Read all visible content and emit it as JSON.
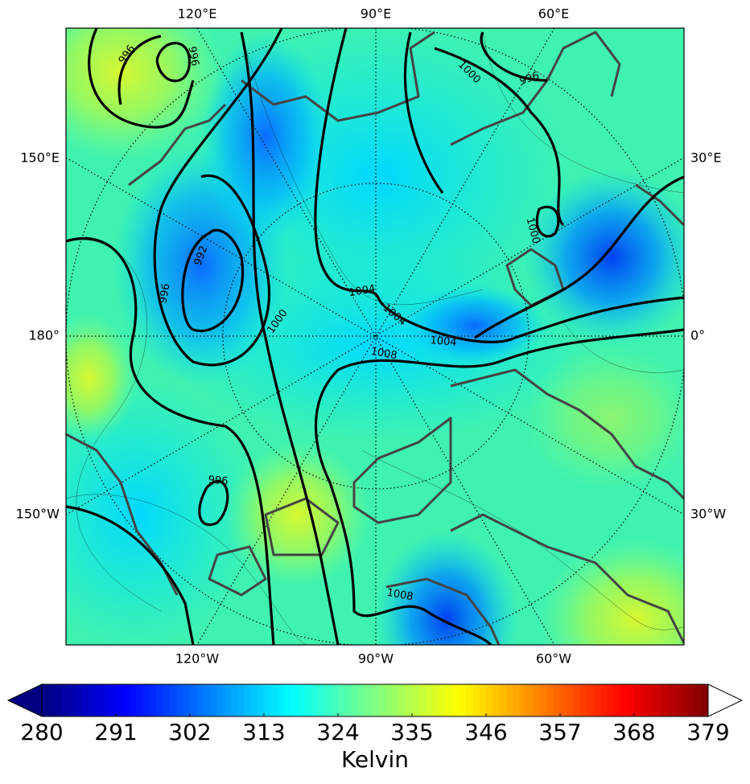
{
  "map": {
    "lon_labels_top": [
      "120°E",
      "90°E",
      "60°E"
    ],
    "lon_labels_bottom": [
      "120°W",
      "90°W",
      "60°W"
    ],
    "lon_labels_left": [
      "150°E",
      "180°",
      "150°W"
    ],
    "lon_labels_right": [
      "30°E",
      "0°",
      "30°W"
    ],
    "contour_labels": [
      996,
      996,
      1000,
      996,
      1000,
      992,
      996,
      1000,
      1004,
      1004,
      1004,
      1008,
      996,
      1008
    ]
  },
  "colorbar": {
    "label": "Kelvin",
    "colormap": "jet",
    "lim": [
      280,
      379
    ],
    "ticks": [
      280,
      291,
      302,
      313,
      324,
      335,
      346,
      357,
      368,
      379
    ]
  }
}
